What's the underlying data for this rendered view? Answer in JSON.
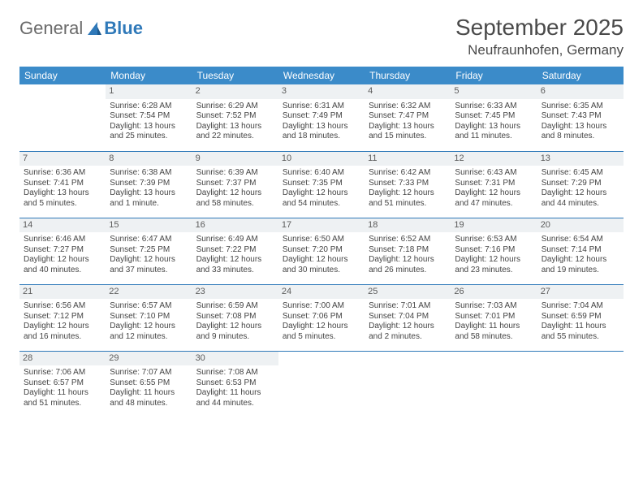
{
  "logo": {
    "general": "General",
    "blue": "Blue"
  },
  "header": {
    "title": "September 2025",
    "location": "Neufraunhofen, Germany"
  },
  "weekdays": [
    "Sunday",
    "Monday",
    "Tuesday",
    "Wednesday",
    "Thursday",
    "Friday",
    "Saturday"
  ],
  "colors": {
    "header_bg": "#3b8bc9",
    "header_text": "#ffffff",
    "rule": "#2f79b9",
    "daynum_bg": "#eef1f3",
    "text": "#444444"
  },
  "weeks": [
    [
      {
        "day": "",
        "sunrise": "",
        "sunset": "",
        "daylight": ""
      },
      {
        "day": "1",
        "sunrise": "Sunrise: 6:28 AM",
        "sunset": "Sunset: 7:54 PM",
        "daylight": "Daylight: 13 hours and 25 minutes."
      },
      {
        "day": "2",
        "sunrise": "Sunrise: 6:29 AM",
        "sunset": "Sunset: 7:52 PM",
        "daylight": "Daylight: 13 hours and 22 minutes."
      },
      {
        "day": "3",
        "sunrise": "Sunrise: 6:31 AM",
        "sunset": "Sunset: 7:49 PM",
        "daylight": "Daylight: 13 hours and 18 minutes."
      },
      {
        "day": "4",
        "sunrise": "Sunrise: 6:32 AM",
        "sunset": "Sunset: 7:47 PM",
        "daylight": "Daylight: 13 hours and 15 minutes."
      },
      {
        "day": "5",
        "sunrise": "Sunrise: 6:33 AM",
        "sunset": "Sunset: 7:45 PM",
        "daylight": "Daylight: 13 hours and 11 minutes."
      },
      {
        "day": "6",
        "sunrise": "Sunrise: 6:35 AM",
        "sunset": "Sunset: 7:43 PM",
        "daylight": "Daylight: 13 hours and 8 minutes."
      }
    ],
    [
      {
        "day": "7",
        "sunrise": "Sunrise: 6:36 AM",
        "sunset": "Sunset: 7:41 PM",
        "daylight": "Daylight: 13 hours and 5 minutes."
      },
      {
        "day": "8",
        "sunrise": "Sunrise: 6:38 AM",
        "sunset": "Sunset: 7:39 PM",
        "daylight": "Daylight: 13 hours and 1 minute."
      },
      {
        "day": "9",
        "sunrise": "Sunrise: 6:39 AM",
        "sunset": "Sunset: 7:37 PM",
        "daylight": "Daylight: 12 hours and 58 minutes."
      },
      {
        "day": "10",
        "sunrise": "Sunrise: 6:40 AM",
        "sunset": "Sunset: 7:35 PM",
        "daylight": "Daylight: 12 hours and 54 minutes."
      },
      {
        "day": "11",
        "sunrise": "Sunrise: 6:42 AM",
        "sunset": "Sunset: 7:33 PM",
        "daylight": "Daylight: 12 hours and 51 minutes."
      },
      {
        "day": "12",
        "sunrise": "Sunrise: 6:43 AM",
        "sunset": "Sunset: 7:31 PM",
        "daylight": "Daylight: 12 hours and 47 minutes."
      },
      {
        "day": "13",
        "sunrise": "Sunrise: 6:45 AM",
        "sunset": "Sunset: 7:29 PM",
        "daylight": "Daylight: 12 hours and 44 minutes."
      }
    ],
    [
      {
        "day": "14",
        "sunrise": "Sunrise: 6:46 AM",
        "sunset": "Sunset: 7:27 PM",
        "daylight": "Daylight: 12 hours and 40 minutes."
      },
      {
        "day": "15",
        "sunrise": "Sunrise: 6:47 AM",
        "sunset": "Sunset: 7:25 PM",
        "daylight": "Daylight: 12 hours and 37 minutes."
      },
      {
        "day": "16",
        "sunrise": "Sunrise: 6:49 AM",
        "sunset": "Sunset: 7:22 PM",
        "daylight": "Daylight: 12 hours and 33 minutes."
      },
      {
        "day": "17",
        "sunrise": "Sunrise: 6:50 AM",
        "sunset": "Sunset: 7:20 PM",
        "daylight": "Daylight: 12 hours and 30 minutes."
      },
      {
        "day": "18",
        "sunrise": "Sunrise: 6:52 AM",
        "sunset": "Sunset: 7:18 PM",
        "daylight": "Daylight: 12 hours and 26 minutes."
      },
      {
        "day": "19",
        "sunrise": "Sunrise: 6:53 AM",
        "sunset": "Sunset: 7:16 PM",
        "daylight": "Daylight: 12 hours and 23 minutes."
      },
      {
        "day": "20",
        "sunrise": "Sunrise: 6:54 AM",
        "sunset": "Sunset: 7:14 PM",
        "daylight": "Daylight: 12 hours and 19 minutes."
      }
    ],
    [
      {
        "day": "21",
        "sunrise": "Sunrise: 6:56 AM",
        "sunset": "Sunset: 7:12 PM",
        "daylight": "Daylight: 12 hours and 16 minutes."
      },
      {
        "day": "22",
        "sunrise": "Sunrise: 6:57 AM",
        "sunset": "Sunset: 7:10 PM",
        "daylight": "Daylight: 12 hours and 12 minutes."
      },
      {
        "day": "23",
        "sunrise": "Sunrise: 6:59 AM",
        "sunset": "Sunset: 7:08 PM",
        "daylight": "Daylight: 12 hours and 9 minutes."
      },
      {
        "day": "24",
        "sunrise": "Sunrise: 7:00 AM",
        "sunset": "Sunset: 7:06 PM",
        "daylight": "Daylight: 12 hours and 5 minutes."
      },
      {
        "day": "25",
        "sunrise": "Sunrise: 7:01 AM",
        "sunset": "Sunset: 7:04 PM",
        "daylight": "Daylight: 12 hours and 2 minutes."
      },
      {
        "day": "26",
        "sunrise": "Sunrise: 7:03 AM",
        "sunset": "Sunset: 7:01 PM",
        "daylight": "Daylight: 11 hours and 58 minutes."
      },
      {
        "day": "27",
        "sunrise": "Sunrise: 7:04 AM",
        "sunset": "Sunset: 6:59 PM",
        "daylight": "Daylight: 11 hours and 55 minutes."
      }
    ],
    [
      {
        "day": "28",
        "sunrise": "Sunrise: 7:06 AM",
        "sunset": "Sunset: 6:57 PM",
        "daylight": "Daylight: 11 hours and 51 minutes."
      },
      {
        "day": "29",
        "sunrise": "Sunrise: 7:07 AM",
        "sunset": "Sunset: 6:55 PM",
        "daylight": "Daylight: 11 hours and 48 minutes."
      },
      {
        "day": "30",
        "sunrise": "Sunrise: 7:08 AM",
        "sunset": "Sunset: 6:53 PM",
        "daylight": "Daylight: 11 hours and 44 minutes."
      },
      {
        "day": "",
        "sunrise": "",
        "sunset": "",
        "daylight": ""
      },
      {
        "day": "",
        "sunrise": "",
        "sunset": "",
        "daylight": ""
      },
      {
        "day": "",
        "sunrise": "",
        "sunset": "",
        "daylight": ""
      },
      {
        "day": "",
        "sunrise": "",
        "sunset": "",
        "daylight": ""
      }
    ]
  ]
}
